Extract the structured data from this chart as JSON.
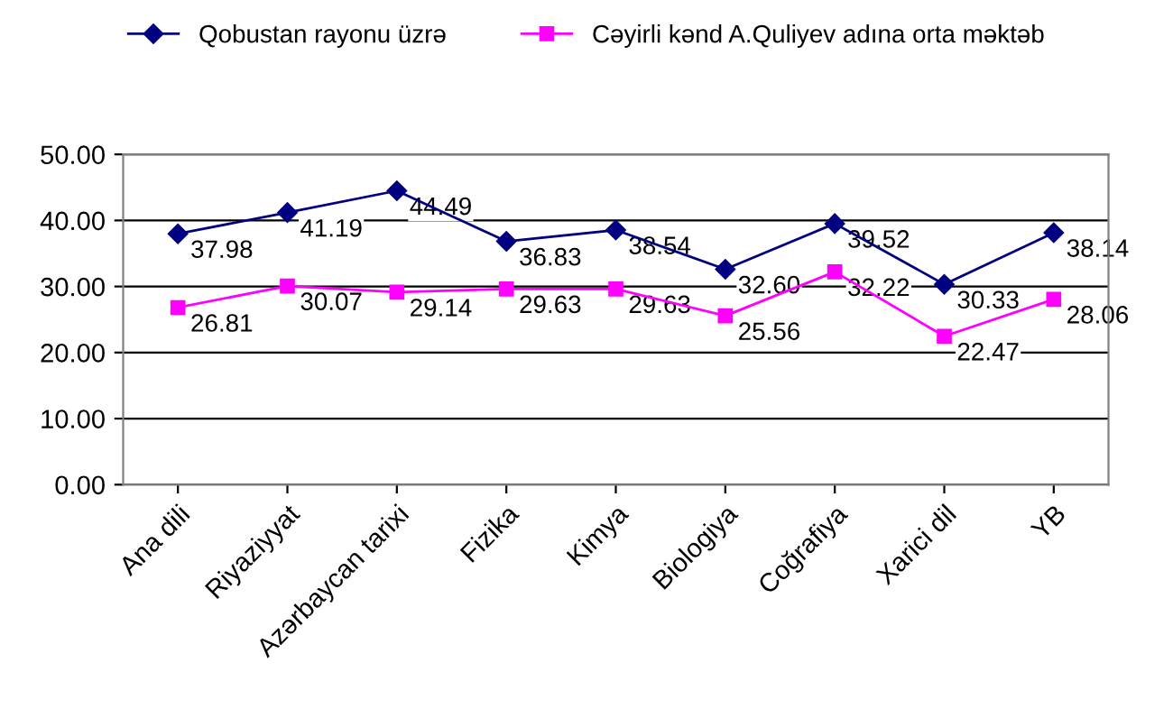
{
  "chart_data": {
    "type": "line",
    "categories": [
      "Ana dili",
      "Riyaziyyat",
      "Azərbaycan tarixi",
      "Fizika",
      "Kimya",
      "Biologiya",
      "Coğrafiya",
      "Xarici dil",
      "YB"
    ],
    "series": [
      {
        "name": "Qobustan rayonu üzrə",
        "color": "#000080",
        "marker": "diamond",
        "values": [
          37.98,
          41.19,
          44.49,
          36.83,
          38.54,
          32.6,
          39.52,
          30.33,
          38.14
        ],
        "value_labels": [
          "37.98",
          "41.19",
          "44.49",
          "36.83",
          "38.54",
          "32.60",
          "39.52",
          "30.33",
          "38.14"
        ]
      },
      {
        "name": "Cəyirli kənd A.Quliyev adına orta məktəb",
        "color": "#ff00ff",
        "marker": "square",
        "values": [
          26.81,
          30.07,
          29.14,
          29.63,
          29.63,
          25.56,
          32.22,
          22.47,
          28.06
        ],
        "value_labels": [
          "26.81",
          "30.07",
          "29.14",
          "29.63",
          "29.63",
          "25.56",
          "32.22",
          "22.47",
          "28.06"
        ]
      }
    ],
    "ylim": [
      0,
      50
    ],
    "yticks": [
      {
        "value": 0,
        "label": "0.00"
      },
      {
        "value": 10,
        "label": "10.00"
      },
      {
        "value": 20,
        "label": "20.00"
      },
      {
        "value": 30,
        "label": "30.00"
      },
      {
        "value": 40,
        "label": "40.00"
      },
      {
        "value": 50,
        "label": "50.00"
      }
    ],
    "grid": "y",
    "legend": "top",
    "line_style": "solid"
  }
}
